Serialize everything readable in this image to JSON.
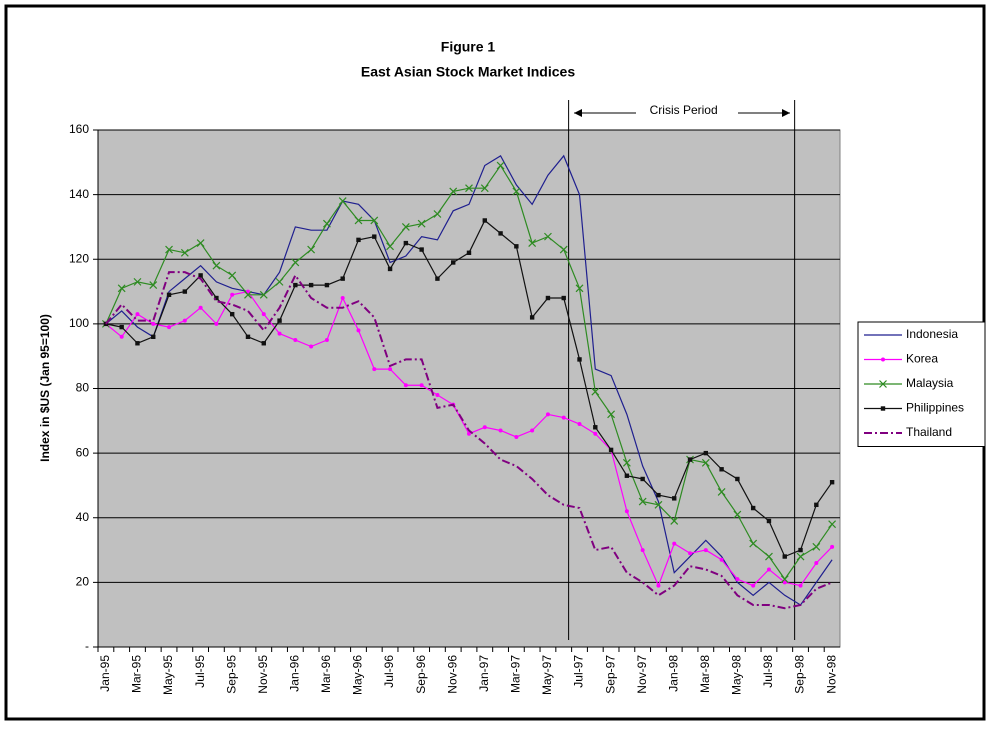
{
  "chart_data": {
    "type": "line",
    "title": "Figure 1",
    "subtitle": "East Asian Stock Market Indices",
    "y_label": "Index in $US (Jan 95=100)",
    "annotation": "Crisis Period",
    "categories": [
      "Jan-95",
      null,
      "Mar-95",
      null,
      "May-95",
      null,
      "Jul-95",
      null,
      "Sep-95",
      null,
      "Nov-95",
      null,
      "Jan-96",
      null,
      "Mar-96",
      null,
      "May-96",
      null,
      "Jul-96",
      null,
      "Sep-96",
      null,
      "Nov-96",
      null,
      "Jan-97",
      null,
      "Mar-97",
      null,
      "May-97",
      null,
      "Jul-97",
      null,
      "Sep-97",
      null,
      "Nov-97",
      null,
      "Jan-98",
      null,
      "Mar-98",
      null,
      "May-98",
      null,
      "Jul-98",
      null,
      "Sep-98",
      null,
      "Nov-98"
    ],
    "ylim": [
      0,
      160
    ],
    "yticks": [
      {
        "value": 0,
        "label": "-"
      },
      20,
      40,
      60,
      80,
      100,
      120,
      140,
      160
    ],
    "grid": true,
    "legend": "right",
    "series": [
      {
        "name": "Indonesia",
        "color": "#1f1f8f",
        "marker": "none",
        "dash": "solid",
        "values": [
          100,
          104,
          99,
          96,
          110,
          114,
          118,
          113,
          111,
          110,
          109,
          116,
          130,
          129,
          129,
          138,
          137,
          132,
          119,
          121,
          127,
          126,
          135,
          137,
          149,
          152,
          143,
          137,
          146,
          152,
          140,
          86,
          84,
          72,
          56,
          45,
          23,
          28,
          33,
          28,
          20,
          16,
          20,
          16,
          13,
          20,
          27
        ]
      },
      {
        "name": "Korea",
        "color": "#ff00ff",
        "marker": "dot",
        "dash": "solid",
        "values": [
          100,
          96,
          103,
          100,
          99,
          101,
          105,
          100,
          109,
          110,
          103,
          97,
          95,
          93,
          95,
          108,
          98,
          86,
          86,
          81,
          81,
          78,
          75,
          66,
          68,
          67,
          65,
          67,
          72,
          71,
          69,
          66,
          61,
          42,
          30,
          19,
          32,
          29,
          30,
          27,
          21,
          19,
          24,
          20,
          19,
          26,
          31
        ]
      },
      {
        "name": "Malaysia",
        "color": "#2e8b22",
        "marker": "x",
        "dash": "solid",
        "values": [
          100,
          111,
          113,
          112,
          123,
          122,
          125,
          118,
          115,
          109,
          109,
          113,
          119,
          123,
          131,
          138,
          132,
          132,
          124,
          130,
          131,
          134,
          141,
          142,
          142,
          149,
          141,
          125,
          127,
          123,
          111,
          79,
          72,
          57,
          45,
          44,
          39,
          58,
          57,
          48,
          41,
          32,
          28,
          21,
          28,
          31,
          38
        ]
      },
      {
        "name": "Philippines",
        "color": "#111111",
        "marker": "square",
        "dash": "solid",
        "values": [
          100,
          99,
          94,
          96,
          109,
          110,
          115,
          108,
          103,
          96,
          94,
          101,
          112,
          112,
          112,
          114,
          126,
          127,
          117,
          125,
          123,
          114,
          119,
          122,
          132,
          128,
          124,
          102,
          108,
          108,
          89,
          68,
          61,
          53,
          52,
          47,
          46,
          58,
          60,
          55,
          52,
          43,
          39,
          28,
          30,
          44,
          51
        ]
      },
      {
        "name": "Thailand",
        "color": "#800080",
        "marker": "none",
        "dash": "dashdot",
        "values": [
          100,
          106,
          101,
          101,
          116,
          116,
          114,
          107,
          106,
          104,
          98,
          105,
          115,
          108,
          105,
          105,
          107,
          102,
          87,
          89,
          89,
          74,
          75,
          67,
          63,
          58,
          56,
          52,
          47,
          44,
          43,
          30,
          31,
          23,
          20,
          16,
          19,
          25,
          24,
          22,
          16,
          13,
          13,
          12,
          13,
          18,
          20
        ]
      }
    ]
  }
}
